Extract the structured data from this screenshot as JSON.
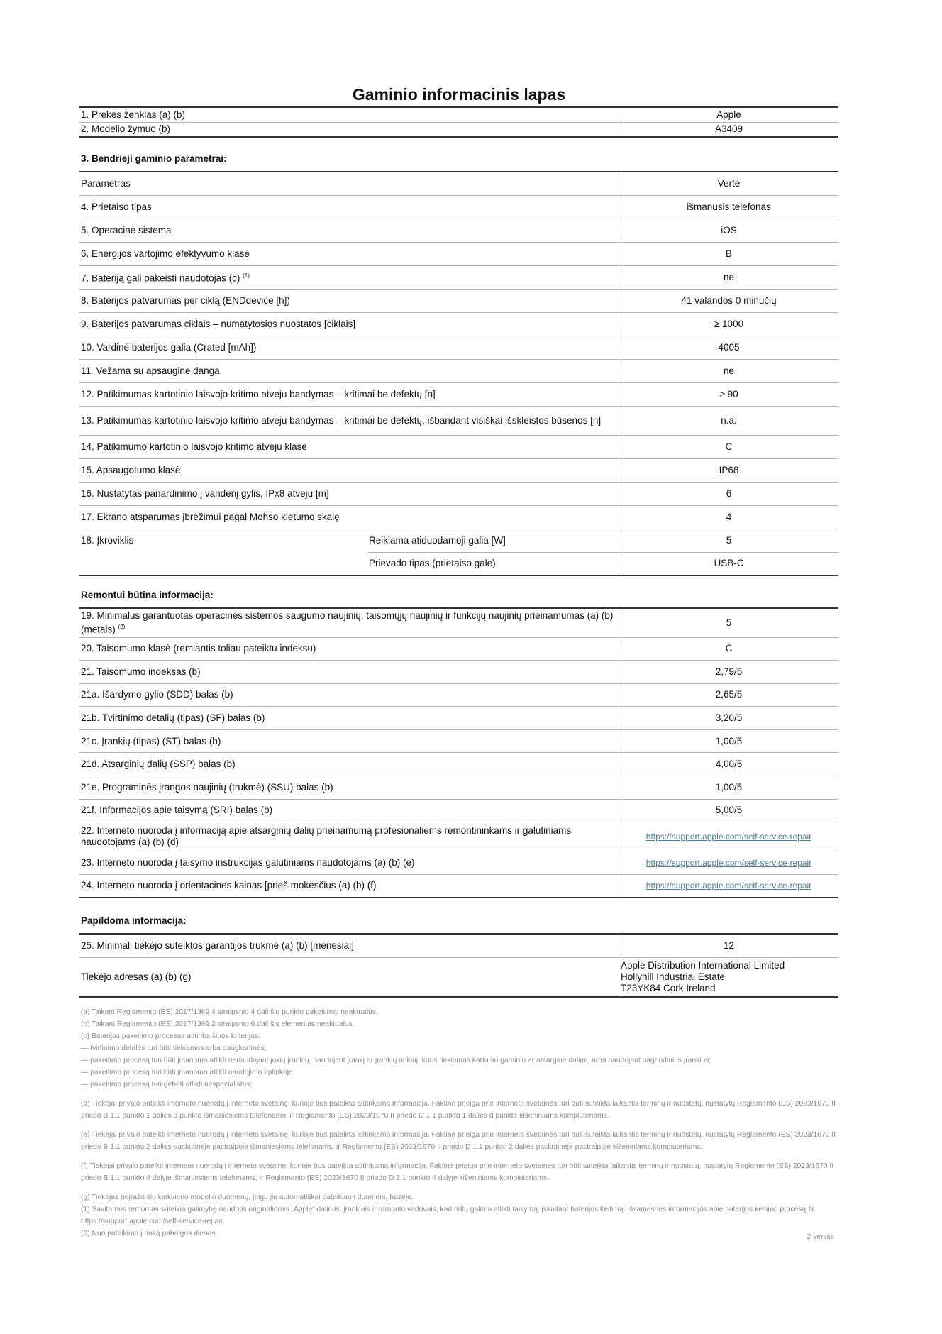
{
  "title": "Gaminio informacinis lapas",
  "table1": {
    "rows": [
      {
        "label": "1. Prekės ženklas (a) (b)",
        "value": "Apple"
      },
      {
        "label": "2. Modelio žymuo (b)",
        "value": "A3409"
      }
    ]
  },
  "section3": {
    "heading": "3. Bendrieji gaminio parametrai:",
    "rows": [
      {
        "label": "Parametras",
        "value": "Vertė"
      },
      {
        "label": "4. Prietaiso tipas",
        "value": "išmanusis telefonas"
      },
      {
        "label": "5. Operacinė sistema",
        "value": "iOS"
      },
      {
        "label": "6. Energijos vartojimo efektyvumo klasė",
        "value": "B"
      },
      {
        "label": "7. Bateriją gali pakeisti naudotojas (c)",
        "sup": "(1)",
        "value": "ne"
      },
      {
        "label": "8. Baterijos patvarumas per ciklą (ENDdevice [h])",
        "value": "41 valandos 0 minučių"
      },
      {
        "label": "9. Baterijos patvarumas ciklais – numatytosios nuostatos [ciklais]",
        "value": "≥ 1000"
      },
      {
        "label": "10. Vardinė baterijos galia (Crated [mAh])",
        "value": "4005"
      },
      {
        "label": "11. Vežama su apsaugine danga",
        "value": "ne"
      },
      {
        "label": "12. Patikimumas kartotinio laisvojo kritimo atveju bandymas – kritimai be defektų [n]",
        "value": "≥ 90"
      },
      {
        "label": "13. Patikimumas kartotinio laisvojo kritimo atveju bandymas – kritimai be defektų, išbandant visiškai išskleistos būsenos [n]",
        "value": "n.a.",
        "tall": true
      },
      {
        "label": "14. Patikimumo kartotinio laisvojo kritimo atveju klasė",
        "value": "C"
      },
      {
        "label": "15. Apsaugotumo klasė",
        "value": "IP68"
      },
      {
        "label": "16. Nustatytas panardinimo į vandenį gylis, IPx8 atveju [m]",
        "value": "6"
      },
      {
        "label": "17. Ekrano atsparumas įbrėžimui pagal Mohso kietumo skalę",
        "value": "4"
      }
    ],
    "charger": {
      "label": "18. Įkroviklis",
      "sub": [
        {
          "label": "Reikiama atiduodamoji galia [W]",
          "value": "5"
        },
        {
          "label": "Prievado tipas (prietaiso gale)",
          "value": "USB-C"
        }
      ]
    }
  },
  "repair": {
    "heading": "Remontui būtina informacija:",
    "rows": [
      {
        "label": "19. Minimalus garantuotas operacinės sistemos saugumo naujinių, taisomųjų naujinių ir funkcijų naujinių prieinamumas (a) (b) (metais)",
        "sup": "(2)",
        "value": "5",
        "tall": true
      },
      {
        "label": "20. Taisomumo klasė (remiantis toliau pateiktu indeksu)",
        "value": "C"
      },
      {
        "label": "21. Taisomumo indeksas (b)",
        "value": "2,79/5"
      },
      {
        "label": "21a. Išardymo gylio (SDD) balas (b)",
        "value": "2,65/5"
      },
      {
        "label": "21b. Tvirtinimo detalių (tipas) (SF) balas (b)",
        "value": "3,20/5"
      },
      {
        "label": "21c. Įrankių (tipas) (ST) balas (b)",
        "value": "1,00/5"
      },
      {
        "label": "21d. Atsarginių dalių (SSP) balas (b)",
        "value": "4,00/5"
      },
      {
        "label": "21e. Programinės įrangos naujinių (trukmė) (SSU) balas (b)",
        "value": "1,00/5"
      },
      {
        "label": "21f. Informacijos apie taisymą (SRI) balas (b)",
        "value": "5,00/5"
      },
      {
        "label": "22. Interneto nuoroda į informaciją apie atsarginių dalių prieinamumą profesionaliems remontininkams ir galutiniams naudotojams (a) (b) (d)",
        "link": "https://support.apple.com/self-service-repair",
        "tall": true
      },
      {
        "label": "23. Interneto nuoroda į taisymo instrukcijas galutiniams naudotojams (a) (b) (e)",
        "link": "https://support.apple.com/self-service-repair"
      },
      {
        "label": "24. Interneto nuoroda į orientacines kainas [prieš mokesčius (a) (b) (f)",
        "link": "https://support.apple.com/self-service-repair"
      }
    ]
  },
  "additional": {
    "heading": "Papildoma informacija:",
    "rows": [
      {
        "label": "25. Minimali tiekėjo suteiktos garantijos trukmė (a) (b) [mėnesiai]",
        "value": "12"
      },
      {
        "label": "Tiekėjo adresas (a) (b) (g)",
        "address": [
          "Apple Distribution International Limited",
          "Hollyhill Industrial Estate",
          "T23YK84 Cork Ireland"
        ]
      }
    ]
  },
  "footnotes": [
    {
      "text": "(a) Taikant Reglamento (ES) 2017/1369 4 straipsnio 4 dalį šio punkto pakeitimai neaktualūs."
    },
    {
      "text": "(b) Taikant Reglamento (ES) 2017/1369 2 straipsnio 6 dalį šis elementas neaktualus."
    },
    {
      "text": "(c) Baterijos pakeitimo procesas atitinka šiuos kriterijus:"
    },
    {
      "text": "— tvirtinimo detalės turi būti tiekiamos arba daugkartinės;"
    },
    {
      "text": "— pakeitimo procesą turi būti įmanoma atlikti nenaudojant jokių įrankių, naudojant įrankį ar įrankių rinkinį, kuris tiekiamas kartu su gaminiu ar atsargine dalimi, arba naudojant pagrindinius įrankius;"
    },
    {
      "text": "— pakeitimo procesą turi būti įmanoma atlikti naudojimo aplinkoje;"
    },
    {
      "text": "— pakeitimo procesą turi gebėti atlikti nespecialistas;"
    },
    {
      "text": "(d) Tiekėjai privalo pateikti interneto nuorodą į interneto svetainę, kurioje bus pateikta atitinkama informacija.  Faktinė prieiga prie interneto svetainės turi būti suteikta laikantis terminų ir nuostatų, nustatytų Reglamento (ES) 2023/1670 II priedo B 1.1 punkto 1 dalies d punkte išmaniesiems telefonams, ir Reglamento (ES) 2023/1670 II priedo D 1.1 punkto 1 dalies d punkte kišeniniams kompiuteriams.",
      "gap": true
    },
    {
      "text": "(e) Tiekėjai privalo pateikti interneto nuorodą į interneto svetainę, kurioje bus pateikta atitinkama informacija. Faktinė prieiga prie interneto svetainės turi būti suteikta laikantis terminų ir nuostatų, nustatytų Reglamento (ES) 2023/1670 II priedo B 1.1 punkto 2 dalies paskutinėje pastraipoje išmaniesiems telefonams, ir Reglamento (ES) 2023/1670 II priedo D 1.1 punkto 2 dalies paskutinėje pastraipoje kišeniniams kompiuteriams.",
      "gap": true
    },
    {
      "text": "(f) Tiekėjai privalo pateikti interneto nuorodą į interneto svetainę, kurioje bus pateikta atitinkama informacija. Faktinė prieiga prie interneto svetainės turi būti suteikta laikantis terminų ir nuostatų, nustatytų Reglamento (ES) 2023/1670 II priedo B 1.1 punkto 4 dalyje išmaniesiems telefonams, ir Reglamento (ES) 2023/1670 II priedo D 1.1 punkto 4 dalyje kišeniniams kompiuteriams.",
      "gap": true
    },
    {
      "text": "(g) Tiekėjas neįrašo šių kiekvieno modelio duomenų, jeigu jie automatiškai pateikiami duomenų bazėje.",
      "gap": true
    },
    {
      "text": "(1) Savitarnos remontas suteikia galimybę naudotis originaliomis „Apple“ dalimis, įrankiais ir remonto vadovais, kad būtų galima atlikti taisymą, įskaitant baterijos keitimą. Išsamesnės informacijos apie baterijos keitimo procesą žr. https://support.apple.com/self-service-repair."
    },
    {
      "text": "(2) Nuo pateikimo į rinką pabaigos dienos."
    }
  ],
  "version": "2 versija",
  "colors": {
    "link": "#4b7d8c",
    "footnote": "#8a8a8a",
    "rule": "#333333",
    "row_rule": "#b5b5b5"
  }
}
